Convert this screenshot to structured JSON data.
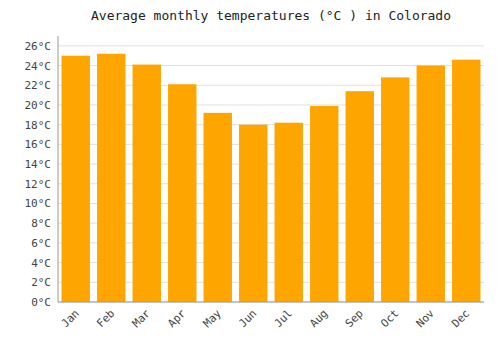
{
  "chart_data": {
    "type": "bar",
    "title": "Average monthly temperatures (°C ) in Colorado",
    "categories": [
      "Jan",
      "Feb",
      "Mar",
      "Apr",
      "May",
      "Jun",
      "Jul",
      "Aug",
      "Sep",
      "Oct",
      "Nov",
      "Dec"
    ],
    "values": [
      25.0,
      25.2,
      24.1,
      22.1,
      19.2,
      18.0,
      18.2,
      19.9,
      21.4,
      22.8,
      24.0,
      24.6
    ],
    "color": "#FFA500",
    "ylim": [
      0,
      27
    ],
    "yticks": [
      {
        "value": 0,
        "label": "0°C"
      },
      {
        "value": 2,
        "label": "2°C"
      },
      {
        "value": 4,
        "label": "4°C"
      },
      {
        "value": 6,
        "label": "6°C"
      },
      {
        "value": 8,
        "label": "8°C"
      },
      {
        "value": 10,
        "label": "10°C"
      },
      {
        "value": 12,
        "label": "12°C"
      },
      {
        "value": 14,
        "label": "14°C"
      },
      {
        "value": 16,
        "label": "16°C"
      },
      {
        "value": 18,
        "label": "18°C"
      },
      {
        "value": 20,
        "label": "20°C"
      },
      {
        "value": 22,
        "label": "22°C"
      },
      {
        "value": 24,
        "label": "24°C"
      },
      {
        "value": 26,
        "label": "26°C"
      }
    ],
    "grid": true
  }
}
